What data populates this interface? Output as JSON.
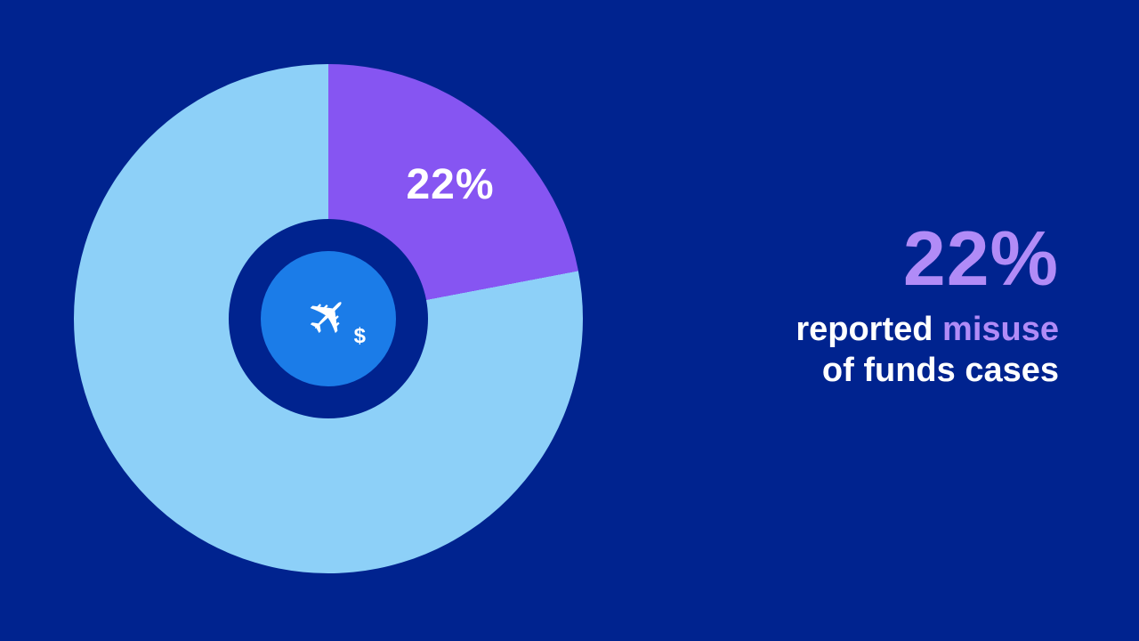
{
  "colors": {
    "bg": "#00238F",
    "slice_purple": "#8655F2",
    "slice_light_blue": "#8DD0F8",
    "badge_blue": "#1B7CE8",
    "accent_purple_light": "#B18BF7",
    "white": "#FFFFFF"
  },
  "chart_data": {
    "type": "pie",
    "donut": true,
    "start_angle_deg": 0,
    "direction": "clockwise",
    "title": "",
    "slices": [
      {
        "label": "22%",
        "value": 22,
        "color": "#8655F2"
      },
      {
        "label": "",
        "value": 78,
        "color": "#8DD0F8"
      }
    ],
    "slice_label": "22%",
    "center_icon": "airplane-dollar-icon",
    "legend": "none",
    "grid": false
  },
  "icons": {
    "airplane_glyph": "✈",
    "dollar_glyph": "$"
  },
  "stat": {
    "value": "22%",
    "caption_part1": "reported ",
    "caption_highlight": "misuse",
    "caption_line2": "of funds cases"
  }
}
